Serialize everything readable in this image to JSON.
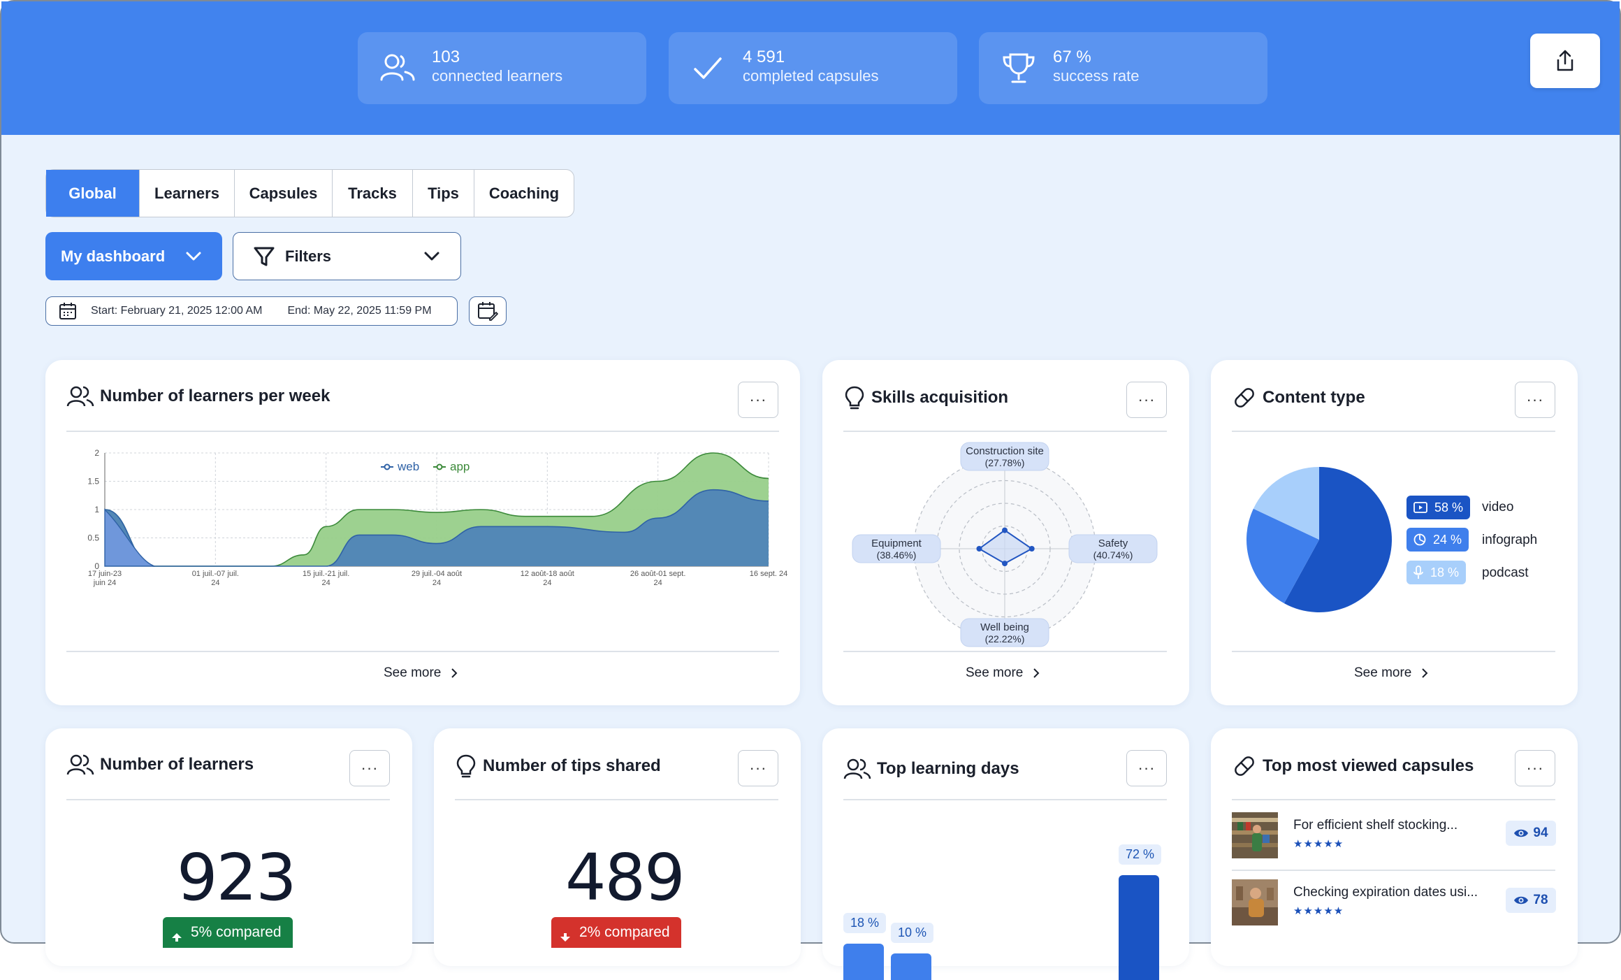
{
  "stats": [
    {
      "value": "103",
      "label": "connected learners",
      "icon": "users-icon"
    },
    {
      "value": "4 591",
      "label": "completed capsules",
      "icon": "check-icon"
    },
    {
      "value": "67 %",
      "label": "success rate",
      "icon": "trophy-icon"
    }
  ],
  "tabs": [
    "Global",
    "Learners",
    "Capsules",
    "Tracks",
    "Tips",
    "Coaching"
  ],
  "active_tab": "Global",
  "dashboard_select": "My dashboard",
  "filters_label": "Filters",
  "date_range": {
    "start": "Start: February 21, 2025 12:00 AM",
    "end": "End: May 22, 2025 11:59 PM"
  },
  "cards": {
    "learners_week": {
      "title": "Number of learners per week",
      "see_more": "See more"
    },
    "skills": {
      "title": "Skills acquisition",
      "see_more": "See more"
    },
    "content": {
      "title": "Content type",
      "see_more": "See more"
    },
    "num_learners": {
      "title": "Number of learners",
      "value": "923",
      "compare": "5% compared"
    },
    "num_tips": {
      "title": "Number of tips shared",
      "value": "489",
      "compare": "2% compared"
    },
    "top_days": {
      "title": "Top learning days"
    },
    "top_capsules": {
      "title": "Top most viewed capsules"
    }
  },
  "more_label": "···",
  "chart_data": [
    {
      "type": "area",
      "title": "Number of learners per week",
      "legend": [
        "web",
        "app"
      ],
      "x": [
        "17 juin-23 juin 24",
        "01 juil.-07 juil. 24",
        "15 juil.-21 juil. 24",
        "29 juil.-04 août 24",
        "12 août-18 août 24",
        "26 août-01 sept. 24",
        "16 sept. 24"
      ],
      "x_tick_lines": [
        [
          "17 juin-23",
          "juin 24"
        ],
        [
          "01 juil.-07 juil.",
          "24"
        ],
        [
          "15 juil.-21 juil.",
          "24"
        ],
        [
          "29 juil.-04 août",
          "24"
        ],
        [
          "12 août-18 août",
          "24"
        ],
        [
          "26 août-01 sept.",
          "24"
        ],
        [
          "16 sept. 24",
          ""
        ]
      ],
      "y_ticks": [
        "0",
        "0.5",
        "1",
        "1.5",
        "2"
      ],
      "ylim": [
        0,
        2
      ],
      "xlim": [
        0,
        6
      ],
      "series": [
        {
          "name": "web",
          "points": [
            [
              0,
              1
            ],
            [
              0.45,
              0
            ],
            [
              1,
              0
            ],
            [
              1.5,
              0
            ],
            [
              2,
              0
            ],
            [
              2.3,
              0.55
            ],
            [
              2.6,
              0.55
            ],
            [
              3,
              0.4
            ],
            [
              3.4,
              0.7
            ],
            [
              4,
              0.7
            ],
            [
              4.7,
              0.6
            ],
            [
              5,
              0.85
            ],
            [
              5.5,
              1.35
            ],
            [
              6,
              1.15
            ]
          ],
          "color": "#4f84b8"
        },
        {
          "name": "app",
          "points": [
            [
              0,
              1
            ],
            [
              0.45,
              0
            ],
            [
              1,
              0
            ],
            [
              1.5,
              0
            ],
            [
              1.8,
              0.2
            ],
            [
              2,
              0.7
            ],
            [
              2.3,
              1
            ],
            [
              2.6,
              1
            ],
            [
              3,
              0.95
            ],
            [
              3.4,
              1
            ],
            [
              3.8,
              0.88
            ],
            [
              4.4,
              0.88
            ],
            [
              5,
              1.5
            ],
            [
              5.5,
              2
            ],
            [
              6,
              1.55
            ]
          ],
          "color": "#98cf8a"
        }
      ]
    },
    {
      "type": "radar",
      "title": "Skills acquisition",
      "categories": [
        "Construction site",
        "Safety",
        "Well being",
        "Equipment"
      ],
      "values": [
        27.78,
        40.74,
        22.22,
        38.46
      ],
      "labels": [
        "Construction site\n(27.78%)",
        "Safety\n(40.74%)",
        "Well being\n(22.22%)",
        "Equipment\n(38.46%)"
      ]
    },
    {
      "type": "pie",
      "title": "Content type",
      "slices": [
        {
          "label": "video",
          "value": 58,
          "pct": "58 %",
          "color": "#1a54c4"
        },
        {
          "label": "infograph",
          "value": 24,
          "pct": "24 %",
          "color": "#3f7fec"
        },
        {
          "label": "podcast",
          "value": 18,
          "pct": "18 %",
          "color": "#a8cffb"
        }
      ]
    },
    {
      "type": "bar",
      "title": "Top learning days",
      "visible_values": [
        {
          "value": 18,
          "label": "18 %"
        },
        {
          "value": 10,
          "label": "10 %"
        },
        {
          "value": 72,
          "label": "72 %"
        }
      ]
    }
  ],
  "top_capsules": [
    {
      "title": "For efficient shelf stocking...",
      "stars": "★★★★★",
      "views": "94"
    },
    {
      "title": "Checking expiration dates usi...",
      "stars": "★★★★★",
      "views": "78"
    }
  ]
}
